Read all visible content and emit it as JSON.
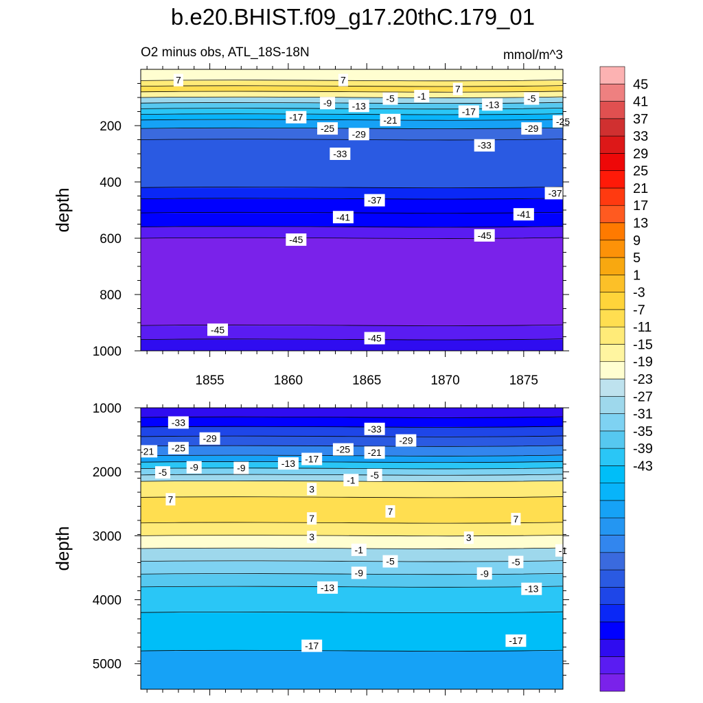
{
  "chart_data": {
    "type": "contour",
    "title": "b.e20.BHIST.f09_g17.20thC.179_01",
    "left_subtitle": "O2 minus obs, ATL_18S-18N",
    "right_subtitle": "mmol/m^3",
    "colors": {
      "line": "#000000",
      "label_bg": "#ffffff",
      "palette": [
        "#7a22ea",
        "#5a1cf2",
        "#2f0cf0",
        "#0000ff",
        "#0a28f6",
        "#1e46e8",
        "#2a5ae2",
        "#3a6ade",
        "#3286ee",
        "#2496f2",
        "#16a2f6",
        "#08b4fa",
        "#00bef8",
        "#2ac6f6",
        "#56c8f0",
        "#7ed2f2",
        "#9ed8ec",
        "#bee2ee",
        "#fffed0",
        "#fff5a0",
        "#ffeb78",
        "#ffde50",
        "#ffd43a",
        "#fcc028",
        "#f8a810",
        "#fd9208",
        "#ff7a00",
        "#ff5a20",
        "#ff3a10",
        "#ff1a08",
        "#ee0808",
        "#dd1818",
        "#d03030",
        "#e05050",
        "#ee8080",
        "#fcb2b2"
      ]
    },
    "colorbar": {
      "labels": [
        "45",
        "41",
        "37",
        "33",
        "29",
        "25",
        "21",
        "17",
        "13",
        "9",
        "5",
        "1",
        "-3",
        "-7",
        "-11",
        "-15",
        "-19",
        "-23",
        "-27",
        "-31",
        "-35",
        "-39",
        "-43"
      ]
    },
    "panels": [
      {
        "name": "top",
        "ylabel": "depth",
        "ylim": [
          1000,
          0
        ],
        "yticks": [
          "200",
          "400",
          "600",
          "800",
          "1000"
        ],
        "xticks": [
          "1855",
          "1860",
          "1865",
          "1870",
          "1875"
        ],
        "bands": [
          {
            "from": 0,
            "to": 40,
            "value": 1
          },
          {
            "from": 40,
            "to": 60,
            "value": 7
          },
          {
            "from": 60,
            "to": 80,
            "value": 9
          },
          {
            "from": 80,
            "to": 100,
            "value": 3
          },
          {
            "from": 100,
            "to": 120,
            "value": -3
          },
          {
            "from": 120,
            "to": 140,
            "value": -9
          },
          {
            "from": 140,
            "to": 160,
            "value": -13
          },
          {
            "from": 160,
            "to": 180,
            "value": -17
          },
          {
            "from": 180,
            "to": 210,
            "value": -21
          },
          {
            "from": 210,
            "to": 250,
            "value": -27
          },
          {
            "from": 250,
            "to": 420,
            "value": -31
          },
          {
            "from": 420,
            "to": 460,
            "value": -35
          },
          {
            "from": 460,
            "to": 510,
            "value": -37
          },
          {
            "from": 510,
            "to": 560,
            "value": -39
          },
          {
            "from": 560,
            "to": 600,
            "value": -43
          },
          {
            "from": 600,
            "to": 910,
            "value": -45
          },
          {
            "from": 910,
            "to": 960,
            "value": -43
          },
          {
            "from": 960,
            "to": 1000,
            "value": -41
          }
        ],
        "labels": [
          {
            "text": "7",
            "x": 1853,
            "y": 38
          },
          {
            "text": "7",
            "x": 1863.5,
            "y": 38
          },
          {
            "text": "7",
            "x": 1870.8,
            "y": 70
          },
          {
            "text": "-1",
            "x": 1868.5,
            "y": 95
          },
          {
            "text": "-5",
            "x": 1866.5,
            "y": 104
          },
          {
            "text": "-5",
            "x": 1875.5,
            "y": 104
          },
          {
            "text": "-9",
            "x": 1862.5,
            "y": 120
          },
          {
            "text": "-13",
            "x": 1864.5,
            "y": 130
          },
          {
            "text": "-13",
            "x": 1873,
            "y": 125
          },
          {
            "text": "-17",
            "x": 1860.5,
            "y": 170
          },
          {
            "text": "-17",
            "x": 1871.5,
            "y": 150
          },
          {
            "text": "-21",
            "x": 1866.5,
            "y": 180
          },
          {
            "text": "-25",
            "x": 1862.5,
            "y": 210
          },
          {
            "text": "-25",
            "x": 1877.5,
            "y": 185
          },
          {
            "text": "-29",
            "x": 1864.5,
            "y": 230
          },
          {
            "text": "-29",
            "x": 1875.5,
            "y": 210
          },
          {
            "text": "-33",
            "x": 1863.3,
            "y": 300
          },
          {
            "text": "-33",
            "x": 1872.5,
            "y": 270
          },
          {
            "text": "-37",
            "x": 1865.5,
            "y": 465
          },
          {
            "text": "-37",
            "x": 1877,
            "y": 440
          },
          {
            "text": "-41",
            "x": 1863.5,
            "y": 525
          },
          {
            "text": "-41",
            "x": 1875,
            "y": 515
          },
          {
            "text": "-45",
            "x": 1860.5,
            "y": 605
          },
          {
            "text": "-45",
            "x": 1872.5,
            "y": 590
          },
          {
            "text": "-45",
            "x": 1855.5,
            "y": 925
          },
          {
            "text": "-45",
            "x": 1865.5,
            "y": 955
          }
        ]
      },
      {
        "name": "bottom",
        "ylabel": "depth",
        "ylim": [
          5400,
          1000
        ],
        "yticks": [
          "1000",
          "2000",
          "3000",
          "4000",
          "5000"
        ],
        "bands": [
          {
            "from": 1000,
            "to": 1150,
            "value": -41
          },
          {
            "from": 1150,
            "to": 1300,
            "value": -37
          },
          {
            "from": 1300,
            "to": 1450,
            "value": -33
          },
          {
            "from": 1450,
            "to": 1600,
            "value": -29
          },
          {
            "from": 1600,
            "to": 1750,
            "value": -25
          },
          {
            "from": 1750,
            "to": 1850,
            "value": -19
          },
          {
            "from": 1850,
            "to": 1950,
            "value": -13
          },
          {
            "from": 1950,
            "to": 2050,
            "value": -7
          },
          {
            "from": 2050,
            "to": 2150,
            "value": -3
          },
          {
            "from": 2150,
            "to": 2400,
            "value": 5
          },
          {
            "from": 2400,
            "to": 2800,
            "value": 9
          },
          {
            "from": 2800,
            "to": 3000,
            "value": 5
          },
          {
            "from": 3000,
            "to": 3200,
            "value": 1
          },
          {
            "from": 3200,
            "to": 3400,
            "value": -3
          },
          {
            "from": 3400,
            "to": 3600,
            "value": -7
          },
          {
            "from": 3600,
            "to": 3800,
            "value": -9
          },
          {
            "from": 3800,
            "to": 4200,
            "value": -13
          },
          {
            "from": 4200,
            "to": 4800,
            "value": -15
          },
          {
            "from": 4800,
            "to": 5400,
            "value": -19
          }
        ],
        "labels": [
          {
            "text": "-33",
            "x": 1853,
            "y": 1230
          },
          {
            "text": "-29",
            "x": 1855,
            "y": 1480
          },
          {
            "text": "-33",
            "x": 1865.5,
            "y": 1330
          },
          {
            "text": "-29",
            "x": 1867.5,
            "y": 1510
          },
          {
            "text": "-21",
            "x": 1851,
            "y": 1680
          },
          {
            "text": "-25",
            "x": 1853,
            "y": 1630
          },
          {
            "text": "-25",
            "x": 1863.5,
            "y": 1650
          },
          {
            "text": "-21",
            "x": 1865.5,
            "y": 1700
          },
          {
            "text": "-17",
            "x": 1861.5,
            "y": 1800
          },
          {
            "text": "-13",
            "x": 1860,
            "y": 1870
          },
          {
            "text": "-9",
            "x": 1854,
            "y": 1930
          },
          {
            "text": "-9",
            "x": 1857,
            "y": 1940
          },
          {
            "text": "-5",
            "x": 1852,
            "y": 2010
          },
          {
            "text": "-5",
            "x": 1865.5,
            "y": 2050
          },
          {
            "text": "-1",
            "x": 1864,
            "y": 2130
          },
          {
            "text": "3",
            "x": 1861.5,
            "y": 2270
          },
          {
            "text": "7",
            "x": 1852.5,
            "y": 2430
          },
          {
            "text": "7",
            "x": 1861.5,
            "y": 2730
          },
          {
            "text": "7",
            "x": 1866.5,
            "y": 2620
          },
          {
            "text": "7",
            "x": 1874.5,
            "y": 2740
          },
          {
            "text": "3",
            "x": 1861.5,
            "y": 3020
          },
          {
            "text": "3",
            "x": 1871.5,
            "y": 3030
          },
          {
            "text": "-1",
            "x": 1864.5,
            "y": 3220
          },
          {
            "text": "-1",
            "x": 1877.5,
            "y": 3230
          },
          {
            "text": "-5",
            "x": 1866.5,
            "y": 3400
          },
          {
            "text": "-5",
            "x": 1874.5,
            "y": 3410
          },
          {
            "text": "-9",
            "x": 1864.5,
            "y": 3580
          },
          {
            "text": "-9",
            "x": 1872.5,
            "y": 3590
          },
          {
            "text": "-13",
            "x": 1862.5,
            "y": 3810
          },
          {
            "text": "-13",
            "x": 1875.5,
            "y": 3830
          },
          {
            "text": "-17",
            "x": 1861.5,
            "y": 4720
          },
          {
            "text": "-17",
            "x": 1874.5,
            "y": 4640
          }
        ]
      }
    ]
  }
}
